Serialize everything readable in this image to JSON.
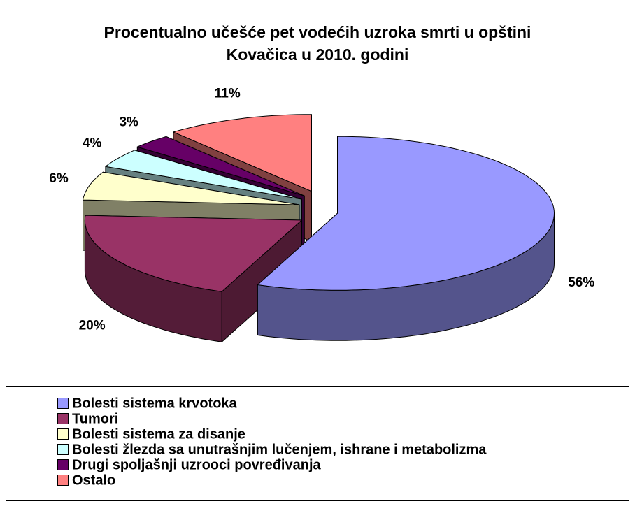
{
  "chart_data": {
    "type": "pie3d",
    "title": "Procentualno učešće pet vodećih uzroka smrti u opštini Kovačica u 2010. godini",
    "categories": [
      "Bolesti sistema krvotoka",
      "Tumori",
      "Bolesti sistema za disanje",
      "Bolesti žlezda sa unutrašnjim lučenjem, ishrane i metabolizma",
      "Drugi spoljašnji uzrooci povređivanja",
      "Ostalo"
    ],
    "values": [
      56,
      20,
      6,
      4,
      3,
      11
    ],
    "value_labels": [
      "56%",
      "20%",
      "6%",
      "4%",
      "3%",
      "11%"
    ],
    "colors": [
      "#9999ff",
      "#993366",
      "#ffffcc",
      "#ccffff",
      "#660066",
      "#ff8080"
    ],
    "legend": "bottom"
  }
}
